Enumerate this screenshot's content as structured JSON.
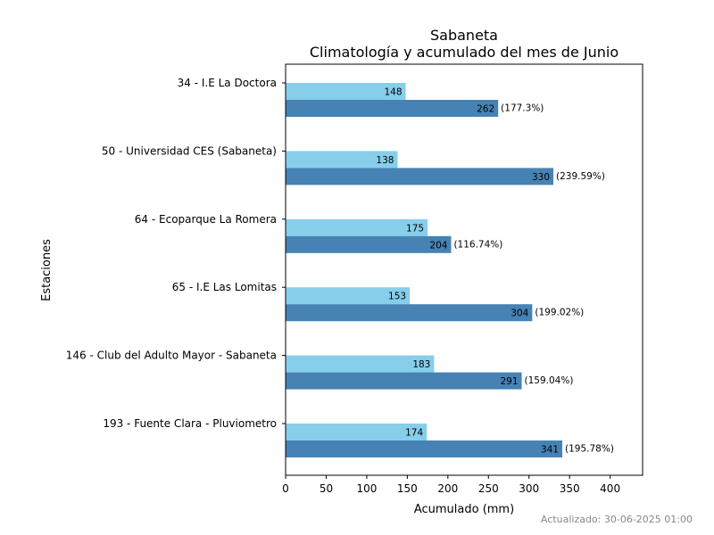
{
  "chart_data": {
    "type": "bar",
    "orientation": "horizontal",
    "title": "Sabaneta",
    "subtitle": "Climatología y acumulado del mes de Junio",
    "xlabel": "Acumulado (mm)",
    "ylabel": "Estaciones",
    "xlim": [
      0,
      440
    ],
    "xticks": [
      0,
      50,
      100,
      150,
      200,
      250,
      300,
      350,
      400
    ],
    "grid": false,
    "categories": [
      "34 - I.E La Doctora",
      "50 - Universidad CES (Sabaneta)",
      "64 - Ecoparque La Romera",
      "65 - I.E Las Lomitas",
      "146 - Club del Adulto Mayor - Sabaneta",
      "193 - Fuente Clara - Pluviometro"
    ],
    "series": [
      {
        "color": "#87ceeb",
        "values": [
          148,
          138,
          175,
          153,
          183,
          174
        ]
      },
      {
        "color": "#4682b4",
        "values": [
          262,
          330,
          204,
          304,
          291,
          341
        ],
        "percent_labels": [
          "(177.3%)",
          "(239.59%)",
          "(116.74%)",
          "(199.02%)",
          "(159.04%)",
          "(195.78%)"
        ]
      }
    ]
  },
  "footer": {
    "updated": "Actualizado: 30-06-2025 01:00"
  }
}
